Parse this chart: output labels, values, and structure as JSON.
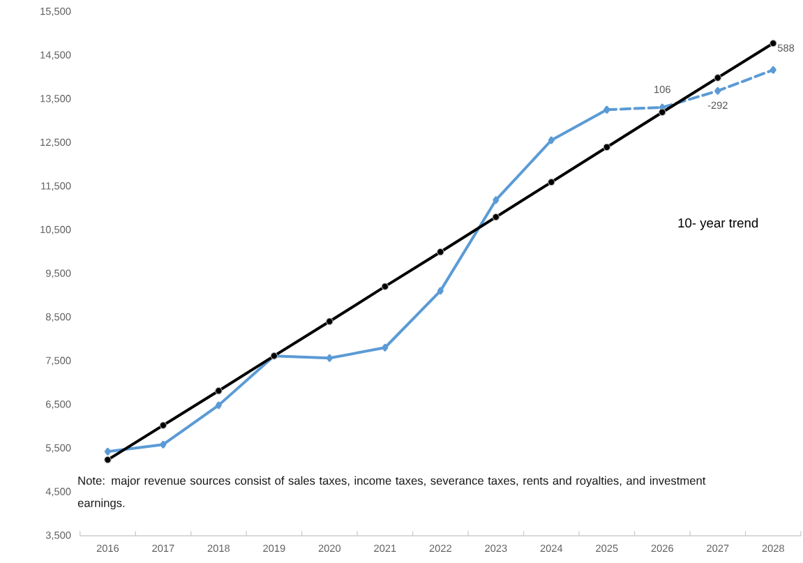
{
  "chart_data": {
    "type": "line",
    "categories": [
      "2016",
      "2017",
      "2018",
      "2019",
      "2020",
      "2021",
      "2022",
      "2023",
      "2024",
      "2025",
      "2026",
      "2027",
      "2028"
    ],
    "series": [
      {
        "color": "#5b9bd5",
        "values": [
          5430,
          5590,
          6490,
          7620,
          7570,
          7810,
          9110,
          11190,
          12560,
          13260,
          null,
          null,
          null
        ],
        "marker": "diamond",
        "line_style": "solid"
      },
      {
        "color": "#5b9bd5",
        "values": [
          null,
          null,
          null,
          null,
          null,
          null,
          null,
          null,
          null,
          13260,
          13310,
          13690,
          14170
        ],
        "marker": "diamond",
        "line_style": "dashed"
      },
      {
        "name": "10- year trend",
        "color": "#000000",
        "values": [
          5240,
          6030,
          6820,
          7620,
          8410,
          9210,
          10000,
          10800,
          11600,
          12400,
          13200,
          13990,
          14780
        ],
        "marker": "circle",
        "line_style": "solid"
      }
    ],
    "ylim": [
      3500,
      15500
    ],
    "yticks": [
      {
        "value": 3500,
        "label": "3,500"
      },
      {
        "value": 4500,
        "label": "4,500"
      },
      {
        "value": 5500,
        "label": "5,500"
      },
      {
        "value": 6500,
        "label": "6,500"
      },
      {
        "value": 7500,
        "label": "7,500"
      },
      {
        "value": 8500,
        "label": "8,500"
      },
      {
        "value": 9500,
        "label": "9,500"
      },
      {
        "value": 10500,
        "label": "10,500"
      },
      {
        "value": 11500,
        "label": "11,500"
      },
      {
        "value": 12500,
        "label": "12,500"
      },
      {
        "value": 13500,
        "label": "13,500"
      },
      {
        "value": 14500,
        "label": "14,500"
      },
      {
        "value": 15500,
        "label": "15,500"
      }
    ],
    "grid": false,
    "annotations": [
      "Note: major revenue sources consist of sales taxes, income taxes, severance taxes, rents and royalties, and investment earnings.",
      {
        "text": "106",
        "x": "2026",
        "y": 13310
      },
      {
        "text": "-292",
        "x": "2027",
        "y": 13690
      },
      {
        "text": "588",
        "x": "2028",
        "y": 14780
      }
    ]
  }
}
